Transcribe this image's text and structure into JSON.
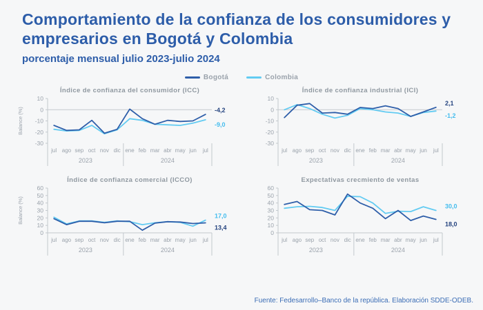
{
  "header": {
    "title": "Comportamiento de la confianza de los consumidores y empresarios en Bogotá y Colombia",
    "subtitle": "porcentaje mensual julio 2023-julio 2024"
  },
  "legend": {
    "items": [
      {
        "label": "Bogotá",
        "color": "#2e5ea9"
      },
      {
        "label": "Colombia",
        "color": "#62cbf2"
      }
    ]
  },
  "footer": {
    "source": "Fuente: Fedesarrollo–Banco de la república. Elaboración SDDE-ODEB."
  },
  "colors": {
    "background": "#f6f7f8",
    "title_blue": "#2d5da9",
    "chart_title_gray": "#8f98a0",
    "axis_gray": "#c3c8cd",
    "tick_text_gray": "#9aa2ab",
    "bogota_line": "#2e5ea9",
    "colombia_line": "#62cbf2",
    "bogota_label": "#24437f",
    "colombia_label": "#45bdee",
    "footer_blue": "#3a6cb5"
  },
  "chart_data": [
    {
      "type": "line",
      "id": "icc",
      "title": "Índice de confianza del consumidor (ICC)",
      "ylabel": "Balance (%)",
      "ylim": [
        -30,
        10
      ],
      "yticks": [
        10,
        0,
        -10,
        -20,
        -30
      ],
      "categories": [
        "jul",
        "ago",
        "sep",
        "oct",
        "nov",
        "dic",
        "ene",
        "feb",
        "mar",
        "abr",
        "may",
        "jun",
        "jul"
      ],
      "year_groups": [
        {
          "label": "2023",
          "count": 6
        },
        {
          "label": "2024",
          "count": 7
        }
      ],
      "zero_line": true,
      "series": [
        {
          "name": "Bogotá",
          "color": "#2e5ea9",
          "values": [
            -14,
            -18.5,
            -18,
            -9.5,
            -21,
            -17.5,
            0.5,
            -8,
            -13,
            -9.5,
            -10.5,
            -10,
            -4.2
          ],
          "end_label": "-4,2",
          "end_label_color": "#24437f"
        },
        {
          "name": "Colombia",
          "color": "#62cbf2",
          "values": [
            -17.5,
            -19,
            -18.5,
            -14,
            -21.5,
            -18,
            -8,
            -9.5,
            -13,
            -13.5,
            -14,
            -12,
            -9.0
          ],
          "end_label": "-9,0",
          "end_label_color": "#45bdee"
        }
      ]
    },
    {
      "type": "line",
      "id": "ici",
      "title": "Índice de confianza industrial (ICI)",
      "ylabel": "",
      "ylim": [
        -30,
        10
      ],
      "yticks": [
        10,
        0,
        -10,
        -20,
        -30
      ],
      "categories": [
        "jul",
        "ago",
        "sep",
        "oct",
        "nov",
        "dic",
        "ene",
        "feb",
        "mar",
        "abr",
        "may",
        "jun",
        "jul"
      ],
      "year_groups": [
        {
          "label": "2023",
          "count": 6
        },
        {
          "label": "2024",
          "count": 7
        }
      ],
      "zero_line": true,
      "series": [
        {
          "name": "Bogotá",
          "color": "#2e5ea9",
          "values": [
            -7,
            4,
            5.5,
            -3,
            -2.5,
            -4,
            2,
            1,
            3.5,
            1,
            -6,
            -2,
            2.1
          ],
          "end_label": "2,1",
          "end_label_color": "#24437f"
        },
        {
          "name": "Colombia",
          "color": "#62cbf2",
          "values": [
            0,
            4.5,
            1,
            -4,
            -7.5,
            -5,
            1,
            0,
            -2,
            -3,
            -6,
            -2.5,
            -1.2
          ],
          "end_label": "-1,2",
          "end_label_color": "#45bdee"
        }
      ]
    },
    {
      "type": "line",
      "id": "icco",
      "title": "Índice de confianza comercial (ICCO)",
      "ylabel": "Balance (%)",
      "ylim": [
        0,
        60
      ],
      "yticks": [
        60,
        50,
        40,
        30,
        20,
        10,
        0
      ],
      "categories": [
        "jul",
        "ago",
        "sep",
        "oct",
        "nov",
        "dic",
        "ene",
        "feb",
        "mar",
        "abr",
        "may",
        "jun",
        "jul"
      ],
      "year_groups": [
        {
          "label": "2023",
          "count": 6
        },
        {
          "label": "2024",
          "count": 7
        }
      ],
      "zero_line": true,
      "series": [
        {
          "name": "Bogotá",
          "color": "#2e5ea9",
          "values": [
            19,
            11,
            15.5,
            15.5,
            13.5,
            15.5,
            15.5,
            3.5,
            13,
            15,
            14.5,
            12.5,
            13.4
          ],
          "end_label": "13,4",
          "end_label_color": "#24437f"
        },
        {
          "name": "Colombia",
          "color": "#62cbf2",
          "values": [
            21,
            12,
            16,
            16,
            14,
            16,
            15,
            11,
            13.5,
            15,
            14,
            9,
            17.0
          ],
          "end_label": "17,0",
          "end_label_color": "#45bdee"
        }
      ]
    },
    {
      "type": "line",
      "id": "ventas",
      "title": "Expectativas crecmiento de ventas",
      "ylabel": "",
      "ylim": [
        0,
        60
      ],
      "yticks": [
        60,
        50,
        40,
        30,
        20,
        10,
        0
      ],
      "categories": [
        "jul",
        "ago",
        "sep",
        "oct",
        "nov",
        "dic",
        "ene",
        "feb",
        "mar",
        "abr",
        "may",
        "jun",
        "jul"
      ],
      "year_groups": [
        {
          "label": "2023",
          "count": 6
        },
        {
          "label": "2024",
          "count": 7
        }
      ],
      "zero_line": true,
      "series": [
        {
          "name": "Bogotá",
          "color": "#2e5ea9",
          "values": [
            38,
            42,
            31,
            30,
            24,
            52,
            40,
            33,
            19,
            30,
            16.5,
            22.5,
            18.0
          ],
          "end_label": "18,0",
          "end_label_color": "#24437f"
        },
        {
          "name": "Colombia",
          "color": "#62cbf2",
          "values": [
            33,
            35,
            35.5,
            34,
            30,
            49,
            48.5,
            40,
            26,
            29,
            28.5,
            35,
            30.0
          ],
          "end_label": "30,0",
          "end_label_color": "#45bdee"
        }
      ]
    }
  ]
}
